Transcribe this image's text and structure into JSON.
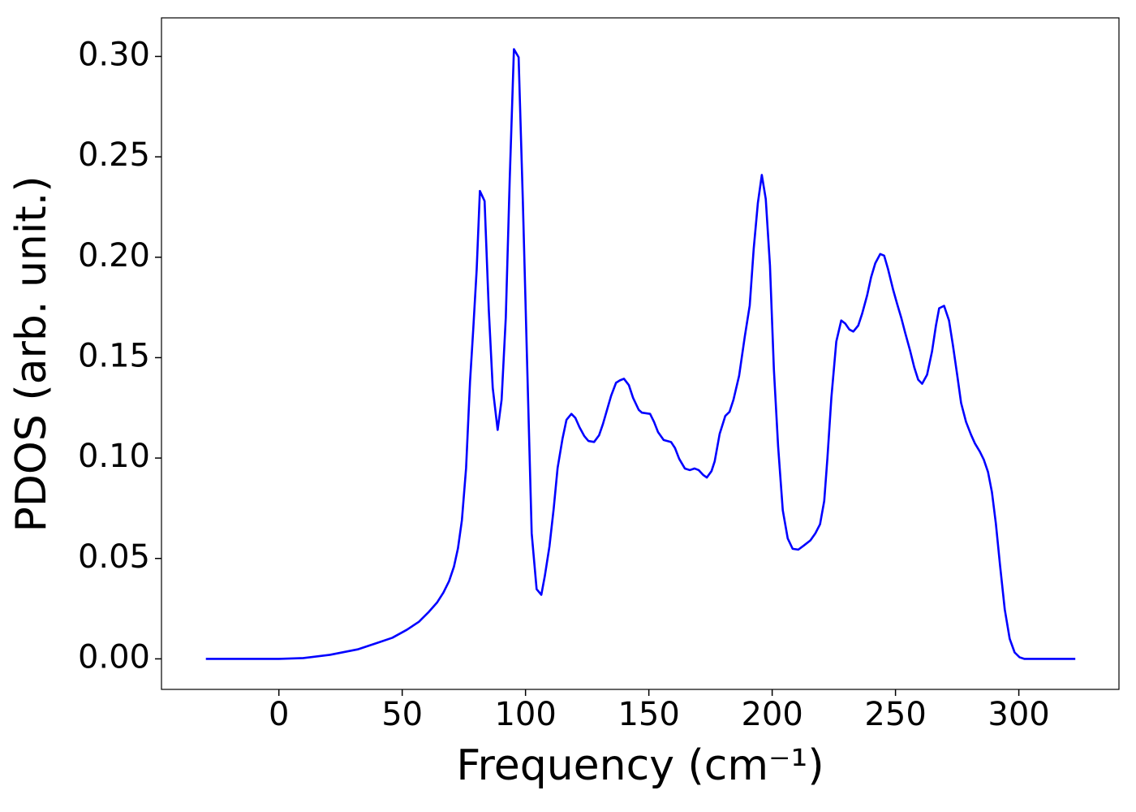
{
  "chart_data": {
    "type": "line",
    "xlabel": "Frequency (cm⁻¹)",
    "ylabel": "PDOS (arb. unit.)",
    "color": "#0000ff",
    "grid": false,
    "xlim": [
      -47.6,
      340.6
    ],
    "ylim": [
      -0.0152,
      0.3192
    ],
    "xticks": [
      0,
      50,
      100,
      150,
      200,
      250,
      300
    ],
    "yticks": [
      {
        "value": 0,
        "label": "0.00"
      },
      0.05,
      {
        "value": 0.1,
        "label": "0.10"
      },
      0.15,
      {
        "value": 0.2,
        "label": "0.20"
      },
      0.25,
      {
        "value": 0.3,
        "label": "0.30"
      }
    ],
    "x": [
      -29.6,
      0,
      9.9,
      20.7,
      32.2,
      40,
      46,
      51.9,
      56.8,
      60.8,
      64.1,
      66.7,
      69,
      71,
      72.6,
      74.2,
      75.9,
      77.5,
      78.8,
      80.2,
      81.5,
      83.4,
      85.1,
      86.7,
      88.7,
      90.3,
      92,
      93.6,
      95.3,
      97.2,
      98.9,
      100.5,
      102.5,
      104.5,
      106.4,
      107.8,
      109.7,
      111.4,
      113,
      115,
      116.6,
      118.6,
      120.2,
      121.9,
      123.8,
      125.5,
      127.8,
      129.8,
      131.4,
      133,
      134.7,
      136.7,
      138.3,
      139.9,
      141.9,
      143.6,
      145.9,
      147.2,
      150.5,
      152.1,
      153.7,
      156,
      159,
      160.6,
      162.3,
      164.6,
      166.6,
      168.5,
      170.2,
      172.1,
      173.5,
      175.4,
      176.7,
      178.7,
      181,
      182.7,
      184.3,
      186.6,
      188.9,
      190.9,
      192.5,
      194.2,
      195.8,
      197.4,
      199.1,
      200.7,
      202.4,
      204.3,
      206.3,
      208.3,
      210.6,
      212.9,
      215.5,
      217.5,
      219.4,
      221.1,
      222.4,
      224,
      226,
      228,
      229.6,
      231.3,
      232.9,
      234.9,
      236.5,
      238.5,
      240.1,
      241.8,
      243.8,
      245.4,
      247,
      249,
      250.7,
      252.3,
      253.9,
      255.9,
      257.6,
      259.2,
      260.8,
      262.8,
      264.8,
      266.4,
      267.7,
      269.7,
      271.7,
      273.3,
      275,
      276.6,
      278.6,
      280.6,
      282.2,
      284.2,
      285.8,
      287.5,
      289.1,
      290.7,
      292.4,
      294.3,
      296.3,
      298.3,
      300.3,
      302.2,
      322.9
    ],
    "values": [
      0,
      0,
      0.0004,
      0.002,
      0.0048,
      0.008,
      0.0105,
      0.0145,
      0.0185,
      0.0234,
      0.028,
      0.033,
      0.0387,
      0.046,
      0.055,
      0.069,
      0.095,
      0.138,
      0.164,
      0.194,
      0.233,
      0.228,
      0.174,
      0.135,
      0.114,
      0.129,
      0.17,
      0.239,
      0.3036,
      0.2996,
      0.2286,
      0.154,
      0.0625,
      0.0347,
      0.0319,
      0.0411,
      0.056,
      0.0746,
      0.095,
      0.1097,
      0.119,
      0.122,
      0.12,
      0.1153,
      0.111,
      0.1085,
      0.108,
      0.1113,
      0.117,
      0.1238,
      0.131,
      0.1375,
      0.1387,
      0.1395,
      0.1363,
      0.13,
      0.124,
      0.1226,
      0.122,
      0.118,
      0.113,
      0.109,
      0.108,
      0.105,
      0.0996,
      0.0948,
      0.094,
      0.0948,
      0.094,
      0.0915,
      0.0903,
      0.0935,
      0.0984,
      0.112,
      0.121,
      0.123,
      0.129,
      0.141,
      0.1605,
      0.176,
      0.204,
      0.227,
      0.241,
      0.229,
      0.196,
      0.144,
      0.106,
      0.074,
      0.06,
      0.0548,
      0.0544,
      0.0565,
      0.059,
      0.0625,
      0.067,
      0.0786,
      0.1,
      0.13,
      0.158,
      0.1685,
      0.167,
      0.164,
      0.163,
      0.166,
      0.172,
      0.181,
      0.19,
      0.197,
      0.2016,
      0.2008,
      0.194,
      0.184,
      0.1766,
      0.17,
      0.1625,
      0.1536,
      0.1452,
      0.139,
      0.137,
      0.1415,
      0.153,
      0.166,
      0.1746,
      0.1758,
      0.1685,
      0.156,
      0.1415,
      0.1274,
      0.118,
      0.1117,
      0.1073,
      0.1032,
      0.0992,
      0.0931,
      0.083,
      0.0673,
      0.0464,
      0.0246,
      0.01,
      0.0032,
      0.0008,
      0,
      0
    ]
  }
}
